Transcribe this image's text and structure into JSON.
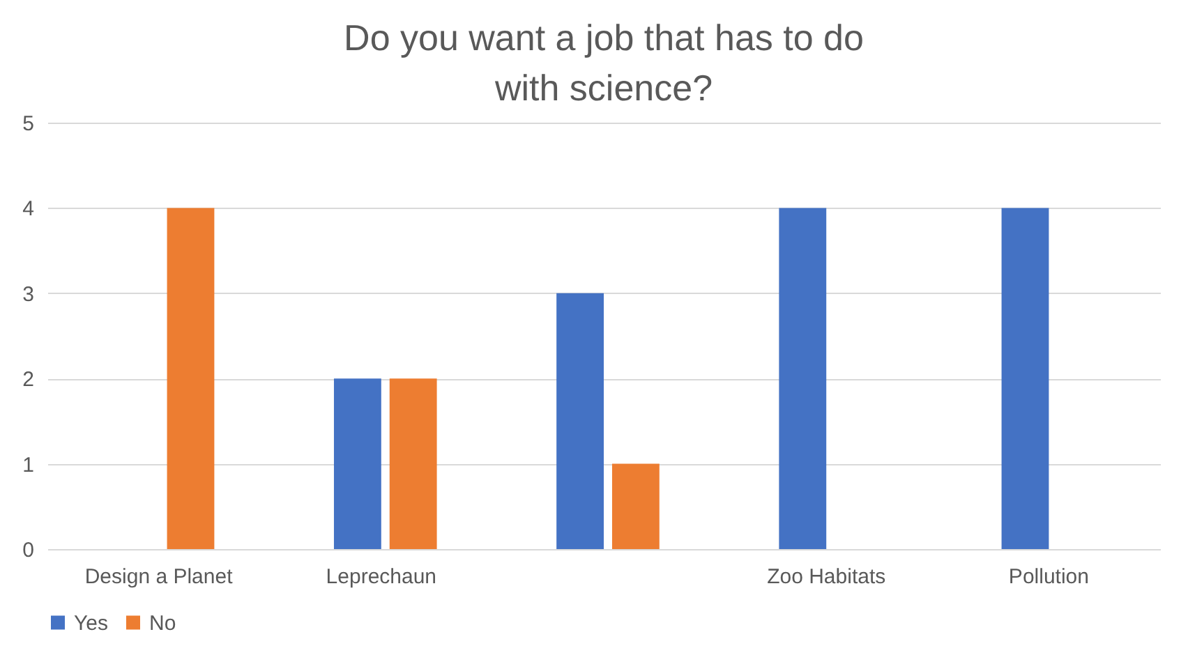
{
  "chart_data": {
    "type": "bar",
    "title": "Do you want a job that has to do with science?",
    "categories": [
      "Design a Planet",
      "Leprechaun",
      null,
      "Zoo Habitats",
      "Pollution"
    ],
    "series": [
      {
        "name": "Yes",
        "color": "#4472c4",
        "values": [
          0,
          2,
          3,
          4,
          4
        ]
      },
      {
        "name": "No",
        "color": "#ed7d31",
        "values": [
          4,
          2,
          1,
          0,
          0
        ]
      }
    ],
    "ylim": [
      0,
      5
    ],
    "yticks": [
      0,
      1,
      2,
      3,
      4,
      5
    ],
    "grid": "y",
    "legend": "bottom"
  }
}
